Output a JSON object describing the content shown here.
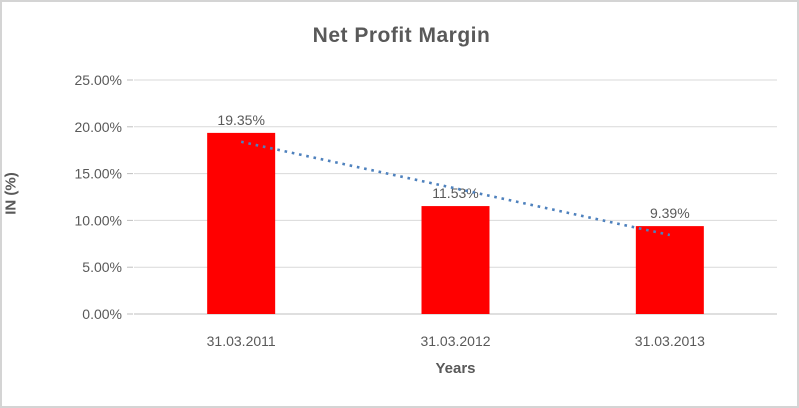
{
  "chart_data": {
    "type": "bar",
    "title": "Net Profit Margin",
    "xlabel": "Years",
    "ylabel": "IN (%)",
    "categories": [
      "31.03.2011",
      "31.03.2012",
      "31.03.2013"
    ],
    "values": [
      19.35,
      11.53,
      9.39
    ],
    "value_labels": [
      "19.35%",
      "11.53%",
      "9.39%"
    ],
    "ylim": [
      0,
      25
    ],
    "ytick_step": 5,
    "ytick_labels": [
      "0.00%",
      "5.00%",
      "10.00%",
      "15.00%",
      "20.00%",
      "25.00%"
    ],
    "grid": true,
    "legend": "none",
    "bar_color": "#ff0000",
    "text_color": "#595959",
    "gridline_color": "#d9d9d9",
    "axis_line_color": "#bfbfbf",
    "trendline": {
      "type": "linear",
      "style": "dotted",
      "color": "#4e81bd",
      "start_value": 18.4,
      "end_value": 8.44
    }
  }
}
